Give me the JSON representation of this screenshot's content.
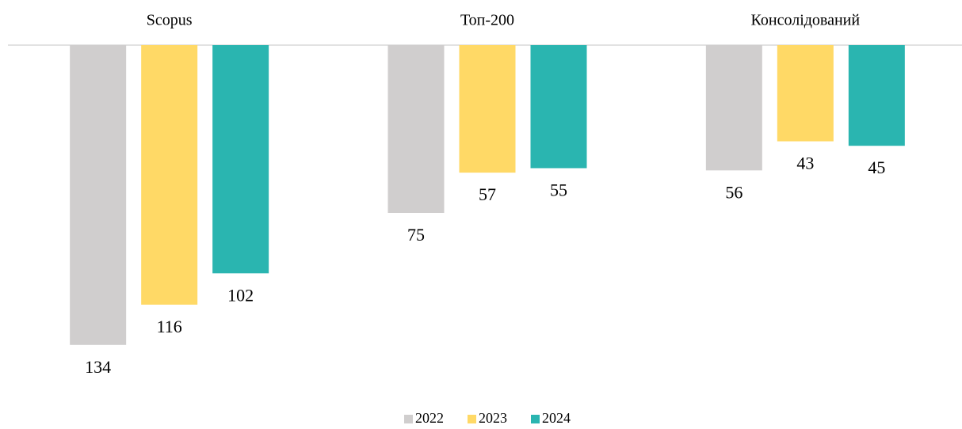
{
  "chart_data": {
    "type": "bar",
    "categories": [
      "Scopus",
      "Топ-200",
      "Консолідований"
    ],
    "series": [
      {
        "name": "2022",
        "color": "#d0cece",
        "values": [
          134,
          75,
          56
        ]
      },
      {
        "name": "2023",
        "color": "#ffd966",
        "values": [
          116,
          57,
          43
        ]
      },
      {
        "name": "2024",
        "color": "#2ab5b0",
        "values": [
          102,
          55,
          45
        ]
      }
    ],
    "ylim": [
      0,
      150
    ],
    "y_reversed": true,
    "legend": "bottom"
  }
}
